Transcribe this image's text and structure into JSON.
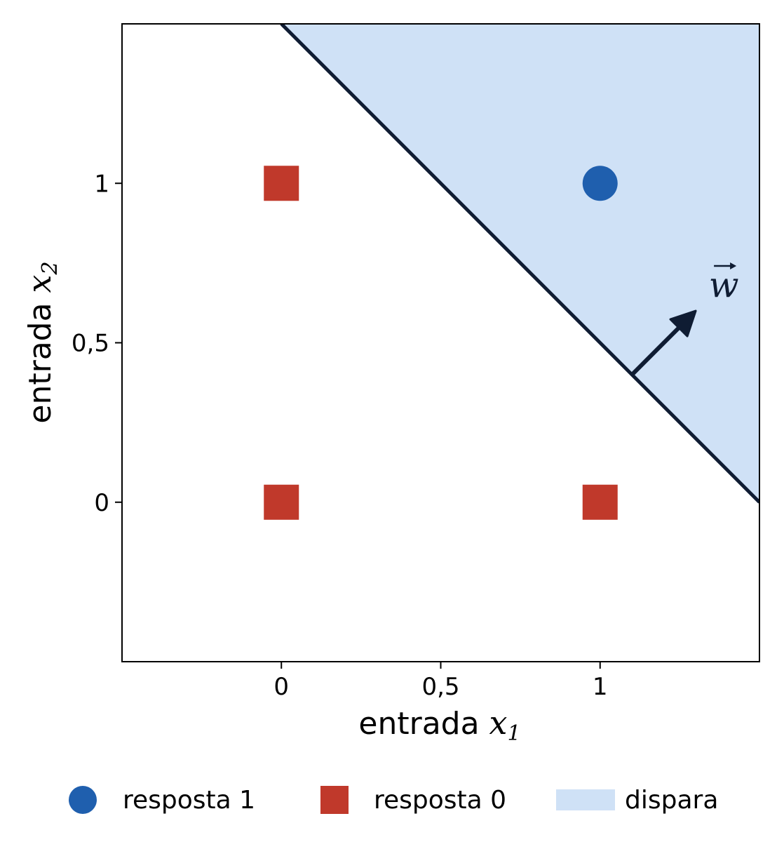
{
  "chart_data": {
    "type": "scatter",
    "xlabel": "entrada ",
    "xlabel_var": "x",
    "xlabel_sub": "1",
    "ylabel": "entrada ",
    "ylabel_var": "x",
    "ylabel_sub": "2",
    "xlim": [
      -0.5,
      1.5
    ],
    "ylim": [
      -0.5,
      1.5
    ],
    "xticks": [
      {
        "value": 0,
        "label": "0"
      },
      {
        "value": 0.5,
        "label": "0,5"
      },
      {
        "value": 1,
        "label": "1"
      }
    ],
    "yticks": [
      {
        "value": 0,
        "label": "0"
      },
      {
        "value": 0.5,
        "label": "0,5"
      },
      {
        "value": 1,
        "label": "1"
      }
    ],
    "grid": false,
    "series": [
      {
        "name": "resposta 1",
        "marker": "circle",
        "color": "#1f5fae",
        "points": [
          [
            1,
            1
          ]
        ]
      },
      {
        "name": "resposta 0",
        "marker": "square",
        "color": "#c0392b",
        "points": [
          [
            0,
            0
          ],
          [
            0,
            1
          ],
          [
            1,
            0
          ]
        ]
      }
    ],
    "decision_boundary": {
      "equation": "x1 + x2 = 1.5",
      "line_color": "#0f1c33"
    },
    "region": {
      "name": "dispara",
      "color": "#cfe1f6",
      "side": "x1 + x2 > 1.5"
    },
    "weight_vector": {
      "label": "w",
      "from": [
        1.1,
        0.4
      ],
      "to": [
        1.3,
        0.6
      ],
      "color": "#0f1c33"
    },
    "legend": {
      "placement": "bottom",
      "entries": [
        {
          "label": "resposta 1",
          "symbol": "circle",
          "color": "#1f5fae"
        },
        {
          "label": "resposta 0",
          "symbol": "square",
          "color": "#c0392b"
        },
        {
          "label": "dispara",
          "symbol": "patch",
          "color": "#cfe1f6"
        }
      ]
    }
  }
}
